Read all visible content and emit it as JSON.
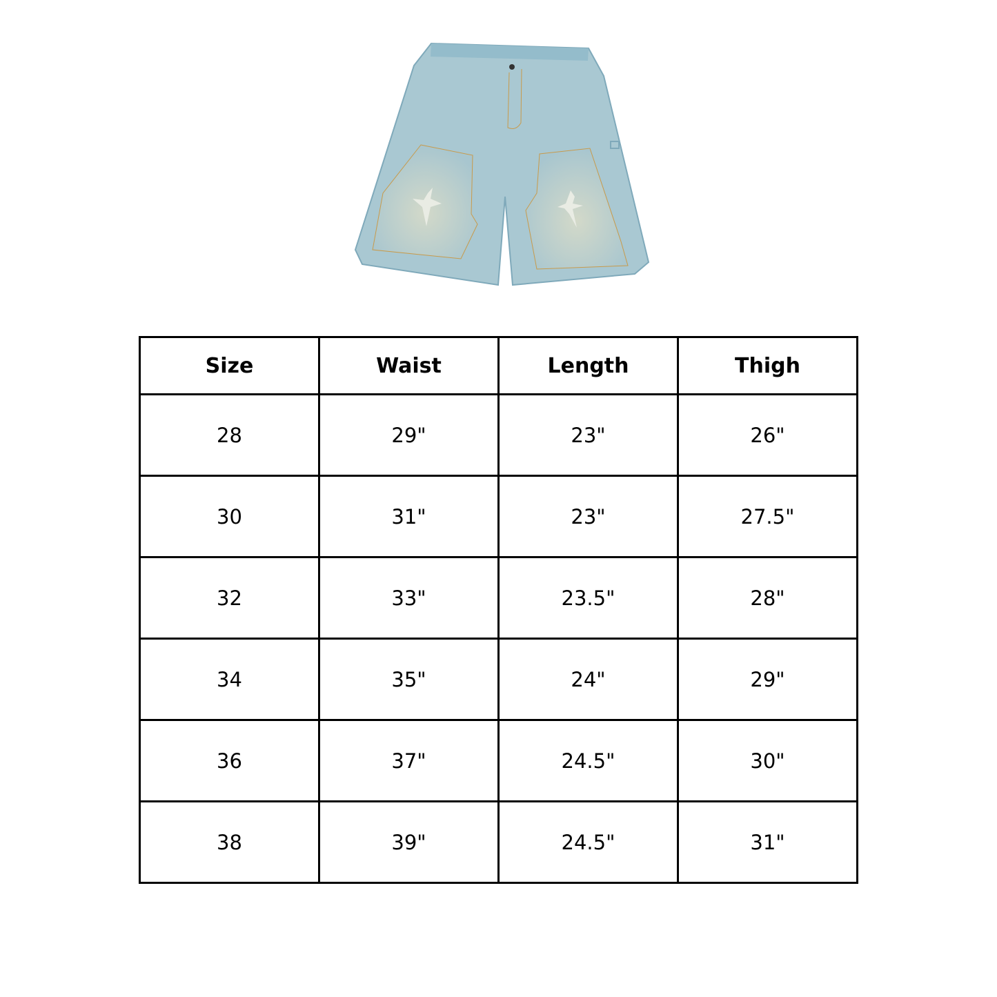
{
  "product_image": {
    "alt": "light wash denim carpenter shorts with cross patches",
    "colors": {
      "denim": "#a9c8d2",
      "denim_dark": "#7fa9ba",
      "patch": "#cfd6c8",
      "cross": "#e9ece4",
      "stitch": "#c89a4a"
    }
  },
  "table": {
    "headers": [
      "Size",
      "Waist",
      "Length",
      "Thigh"
    ],
    "rows": [
      [
        "28",
        "29\"",
        "23\"",
        "26\""
      ],
      [
        "30",
        "31\"",
        "23\"",
        "27.5\""
      ],
      [
        "32",
        "33\"",
        "23.5\"",
        "28\""
      ],
      [
        "34",
        "35\"",
        "24\"",
        "29\""
      ],
      [
        "36",
        "37\"",
        "24.5\"",
        "30\""
      ],
      [
        "38",
        "39\"",
        "24.5\"",
        "31\""
      ]
    ]
  }
}
